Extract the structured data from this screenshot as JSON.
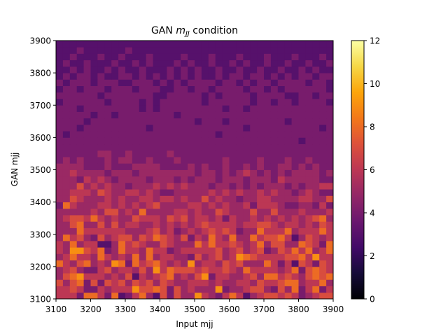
{
  "chart_data": {
    "type": "heatmap",
    "title_main": "GAN ",
    "title_var": "m",
    "title_sub": "JJ",
    "title_suffix": " condition",
    "xlabel": "Input mjj",
    "ylabel": "GAN mjj",
    "xlim": [
      3100,
      3900
    ],
    "ylim": [
      3100,
      3900
    ],
    "xticks": [
      "3100",
      "3200",
      "3300",
      "3400",
      "3500",
      "3600",
      "3700",
      "3800",
      "3900"
    ],
    "yticks": [
      "3100",
      "3200",
      "3300",
      "3400",
      "3500",
      "3600",
      "3700",
      "3800",
      "3900"
    ],
    "bins": 40,
    "colorbar": {
      "range": [
        0,
        12
      ],
      "ticks": [
        "0",
        "2",
        "4",
        "6",
        "8",
        "10",
        "12"
      ],
      "colormap": "inferno"
    },
    "grid": false,
    "counts": [
      "6664886483468537475596546863567767645677",
      "6676446566697787475655594556775475846846",
      "7578474767576757655666565566576678856685",
      "5789666565736567856579466556758867657878",
      "5675446756657596877767667658666656847876",
      "8657856598486786565956657675558646376476",
      "5686658656585856655475675698766667786966",
      "6599768458665866456666675675674576868568",
      "6585663358676557655586866765685775587648",
      "5867547567757687657465865855867786357656",
      "5558666666555675645656767645586668566686",
      "5578557575665565656567666656677656656576",
      "5677686565576665767566564655656565656785",
      "5555565775658555566565576555755755565556",
      "4865556656565675555665656556466654455464",
      "5576555656556656656557565545566555566557",
      "5566657655665654455555656565565655456544",
      "5557565655455565656555455454545554545566",
      "5554656545555455545455545554555465555544",
      "5565555455545555555545545456545454555545",
      "5555444544455554444545445445454455454544",
      "4545444545544544454444445444454445445444",
      "4444445544544444544444444444444444444444",
      "4444444444444444444444444444444444444444",
      "4444444444444444444444444444444444434444",
      "4344444444444444444444434444444444444444",
      "4443444444444344444444444443444444444434",
      "4444344444444444444434443444444443444444",
      "4444434434444444434444444444444444444444",
      "4443444444443434444444443443444444444444",
      "3444444344443434444443444444344344344443",
      "4444443444444433444443434444344443344344",
      "3443444344434443344344344443443434444443",
      "4344434443344434343444434434344344443443",
      "3434434334434343434343343443443434344344",
      "3343433434334333434343343343343343343433",
      "3433433343343433343433433434334334334334",
      "3343334334333433334333433343334333433343",
      "3334333333433333333333333333333333333333",
      "3333333333333333333333333333333333333333"
    ]
  }
}
